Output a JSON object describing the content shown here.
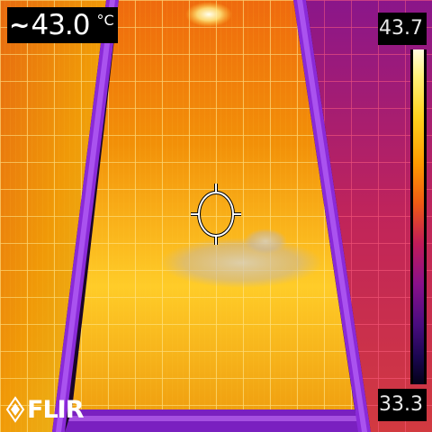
{
  "spot_reading": {
    "approx_symbol": "~",
    "value": "43.0",
    "unit": "°C"
  },
  "scale": {
    "max_label": "43.7",
    "min_label": "33.3",
    "palette": "iron"
  },
  "brand": {
    "logo_text": "FLIR"
  },
  "colors": {
    "hot": "#ffe060",
    "warm": "#ff9a00",
    "mid": "#f05a14",
    "cool": "#8a108a",
    "frame": "#9c3fe0",
    "background": "#000000",
    "text": "#ffffff"
  },
  "icons": {
    "crosshair": "spot-meter-crosshair-icon",
    "logo": "flir-logo-icon"
  }
}
